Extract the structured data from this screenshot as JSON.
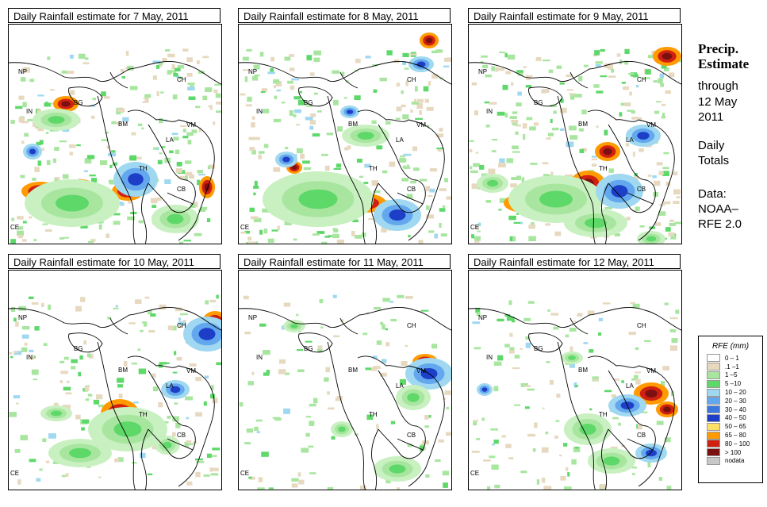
{
  "panels": [
    {
      "title": "Daily Rainfall estimate for  7 May, 2011",
      "intensity": 1.0
    },
    {
      "title": "Daily Rainfall estimate for  8 May, 2011",
      "intensity": 0.95
    },
    {
      "title": "Daily Rainfall estimate for  9 May, 2011",
      "intensity": 1.0
    },
    {
      "title": "Daily Rainfall estimate for  10 May, 2011",
      "intensity": 0.65
    },
    {
      "title": "Daily Rainfall estimate for  11 May, 2011",
      "intensity": 0.45
    },
    {
      "title": "Daily Rainfall estimate for  12 May, 2011",
      "intensity": 0.55
    }
  ],
  "country_labels": [
    "NP",
    "CH",
    "IN",
    "BG",
    "BM",
    "VM",
    "LA",
    "TH",
    "CB",
    "CE"
  ],
  "sidebar": {
    "title1": "Precip.",
    "title2": "Estimate",
    "through_word": "through",
    "date_line1": "12 May",
    "date_line2": "2011",
    "totals1": "Daily",
    "totals2": "Totals",
    "data1": "Data:",
    "data2": "NOAA–",
    "data3": "RFE 2.0"
  },
  "legend": {
    "title": "RFE (mm)",
    "items": [
      {
        "label": "0 – 1",
        "color": "#ffffff"
      },
      {
        "label": ".1 –1",
        "color": "#e7d9c0"
      },
      {
        "label": "1 –5",
        "color": "#a8e6a0"
      },
      {
        "label": "5 –10",
        "color": "#5fd86a"
      },
      {
        "label": "10 – 20",
        "color": "#9fd8f0"
      },
      {
        "label": "20 – 30",
        "color": "#63a8ee"
      },
      {
        "label": "30 – 40",
        "color": "#3a78e0"
      },
      {
        "label": "40 – 50",
        "color": "#1d3fc8"
      },
      {
        "label": "50 – 65",
        "color": "#ffe066"
      },
      {
        "label": "65 – 80",
        "color": "#ff9a00"
      },
      {
        "label": "80 – 100",
        "color": "#d02010"
      },
      {
        "label": "> 100",
        "color": "#7a1010"
      },
      {
        "label": "nodata",
        "color": "#c8c8c8"
      }
    ]
  }
}
